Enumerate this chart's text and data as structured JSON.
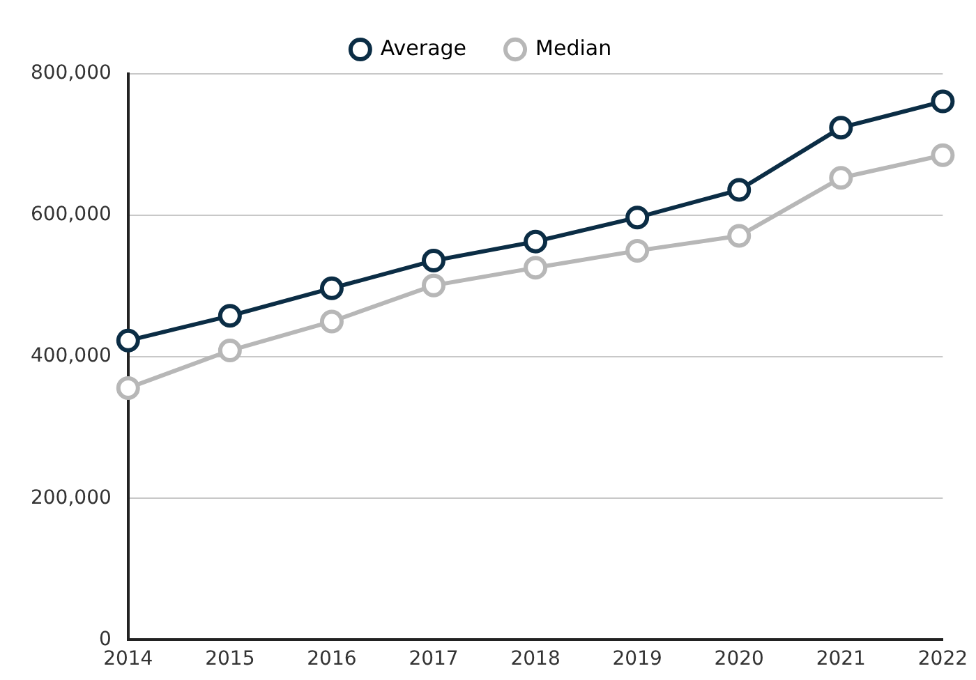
{
  "chart_data": {
    "type": "line",
    "categories": [
      "2014",
      "2015",
      "2016",
      "2017",
      "2018",
      "2019",
      "2020",
      "2021",
      "2022"
    ],
    "series": [
      {
        "name": "Average",
        "color": "#0b2d45",
        "values": [
          423000,
          458000,
          497000,
          536000,
          563000,
          597000,
          636000,
          724000,
          761000
        ]
      },
      {
        "name": "Median",
        "color": "#b7b7b7",
        "values": [
          356000,
          409000,
          450000,
          501000,
          526000,
          550000,
          571000,
          653000,
          685000
        ]
      }
    ],
    "ylim": [
      0,
      800000
    ],
    "yticks": [
      {
        "value": 0,
        "label": "0"
      },
      {
        "value": 200000,
        "label": "200,000"
      },
      {
        "value": 400000,
        "label": "400,000"
      },
      {
        "value": 600000,
        "label": "600,000"
      },
      {
        "value": 800000,
        "label": "800,000"
      }
    ],
    "grid": "y",
    "legend": "top",
    "marker": "circle",
    "line_style": "solid"
  }
}
